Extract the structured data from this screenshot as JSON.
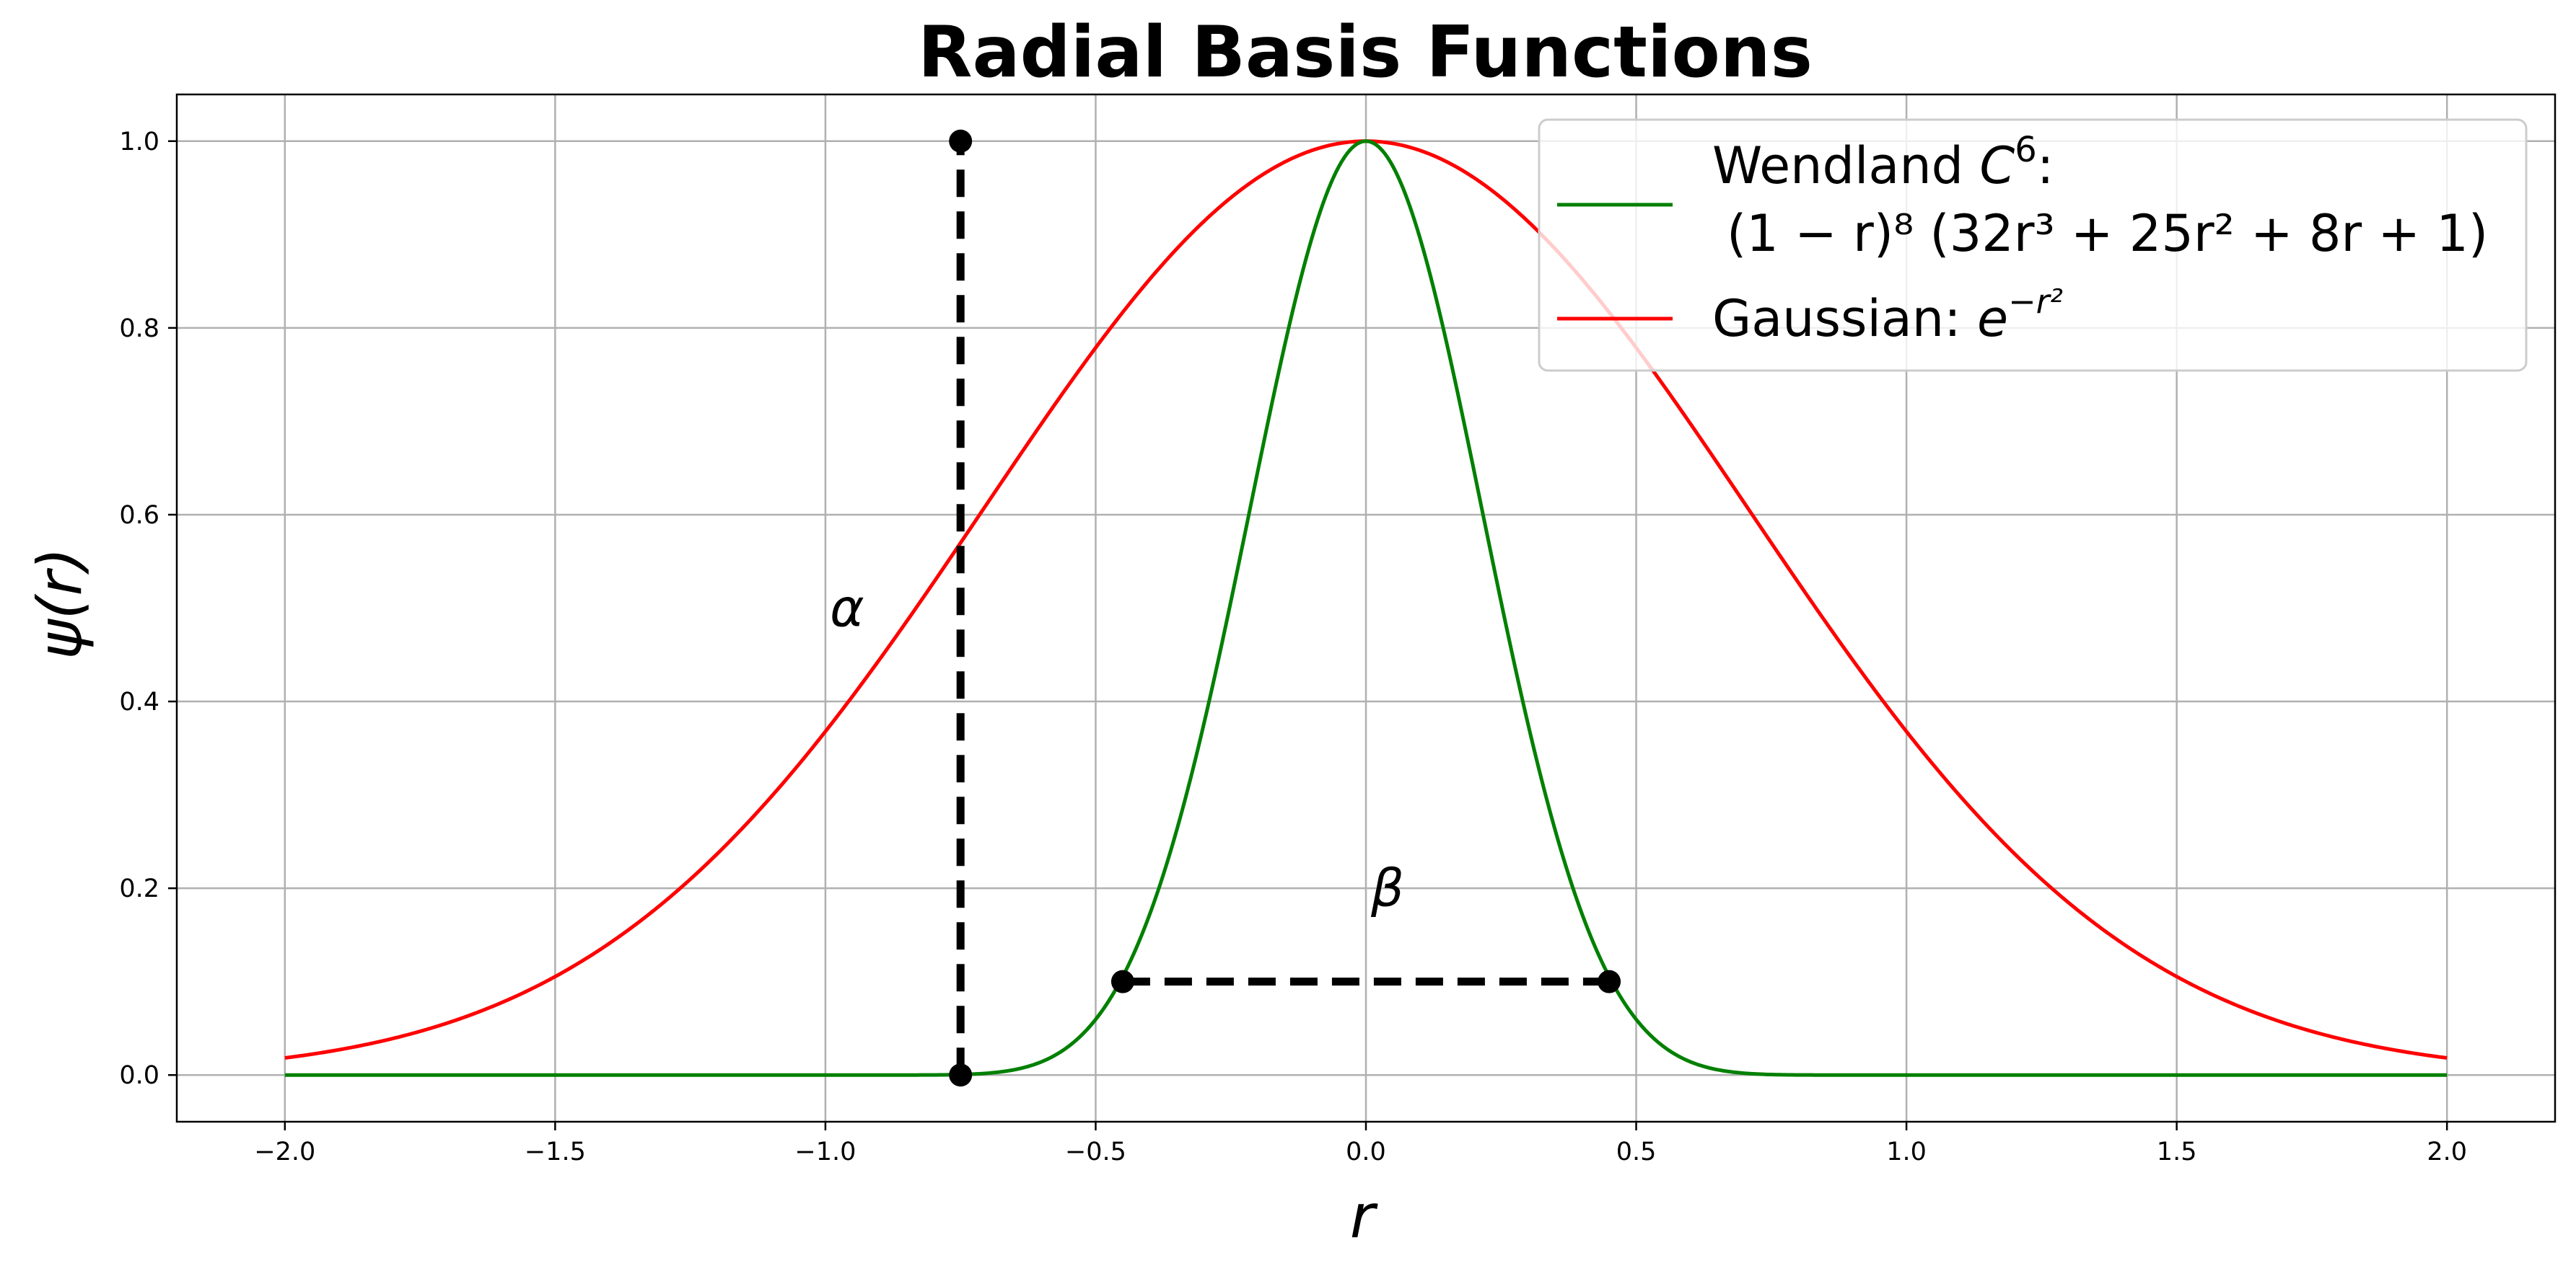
{
  "chart_data": {
    "type": "line",
    "title": "Radial Basis Functions",
    "xlabel": "r",
    "ylabel": "ψ(r)",
    "xlim": [
      -2.2,
      2.2
    ],
    "ylim": [
      -0.05,
      1.05
    ],
    "xticks": [
      -2.0,
      -1.5,
      -1.0,
      -0.5,
      0.0,
      0.5,
      1.0,
      1.5,
      2.0
    ],
    "xtick_labels": [
      "−2.0",
      "−1.5",
      "−1.0",
      "−0.5",
      "0.0",
      "0.5",
      "1.0",
      "1.5",
      "2.0"
    ],
    "yticks": [
      0.0,
      0.2,
      0.4,
      0.6,
      0.8,
      1.0
    ],
    "ytick_labels": [
      "0.0",
      "0.2",
      "0.4",
      "0.6",
      "0.8",
      "1.0"
    ],
    "grid": true,
    "legend_position": "upper-right",
    "series": [
      {
        "name": "Wendland C⁶: (1 − r)⁸ (32r³ + 25r² + 8r + 1)",
        "color": "#008000",
        "function": "wendland_c6",
        "x_range": [
          -2.0,
          2.0
        ],
        "x": [
          -2.0,
          -1.0,
          -0.9,
          -0.8,
          -0.7,
          -0.6,
          -0.5,
          -0.4,
          -0.3,
          -0.2,
          -0.1,
          0.0,
          0.1,
          0.2,
          0.3,
          0.4,
          0.5,
          0.6,
          0.7,
          0.8,
          0.9,
          1.0,
          2.0
        ],
        "y": [
          0.0,
          0.0,
          0.0,
          0.0,
          0.004,
          0.021,
          0.073,
          0.19,
          0.38,
          0.62,
          0.86,
          1.0,
          0.86,
          0.62,
          0.38,
          0.19,
          0.073,
          0.021,
          0.004,
          0.0,
          0.0,
          0.0,
          0.0
        ]
      },
      {
        "name": "Gaussian: e^(−r²)",
        "color": "#ff0000",
        "function": "gaussian",
        "x_range": [
          -2.0,
          2.0
        ],
        "x": [
          -2.0,
          -1.5,
          -1.0,
          -0.5,
          0.0,
          0.5,
          1.0,
          1.5,
          2.0
        ],
        "y": [
          0.018,
          0.105,
          0.368,
          0.779,
          1.0,
          0.779,
          0.368,
          0.105,
          0.018
        ]
      }
    ],
    "annotations": [
      {
        "label": "α",
        "style": "dashed",
        "color": "#000000",
        "from": [
          -0.75,
          0.0
        ],
        "to": [
          -0.75,
          1.0
        ],
        "label_at": [
          -0.96,
          0.5
        ]
      },
      {
        "label": "β",
        "style": "dashed",
        "color": "#000000",
        "from": [
          -0.45,
          0.1
        ],
        "to": [
          0.45,
          0.1
        ],
        "label_at": [
          0.04,
          0.2
        ]
      }
    ]
  },
  "legend": {
    "wendland": {
      "line1_name": "Wendland ",
      "line1_c": "C",
      "line1_sup": "6",
      "line1_colon": ":",
      "line2": "(1 − r)⁸ (32r³ + 25r² + 8r + 1)"
    },
    "gaussian": {
      "prefix": "Gaussian: ",
      "base": "e",
      "exponent": "−r²"
    }
  }
}
